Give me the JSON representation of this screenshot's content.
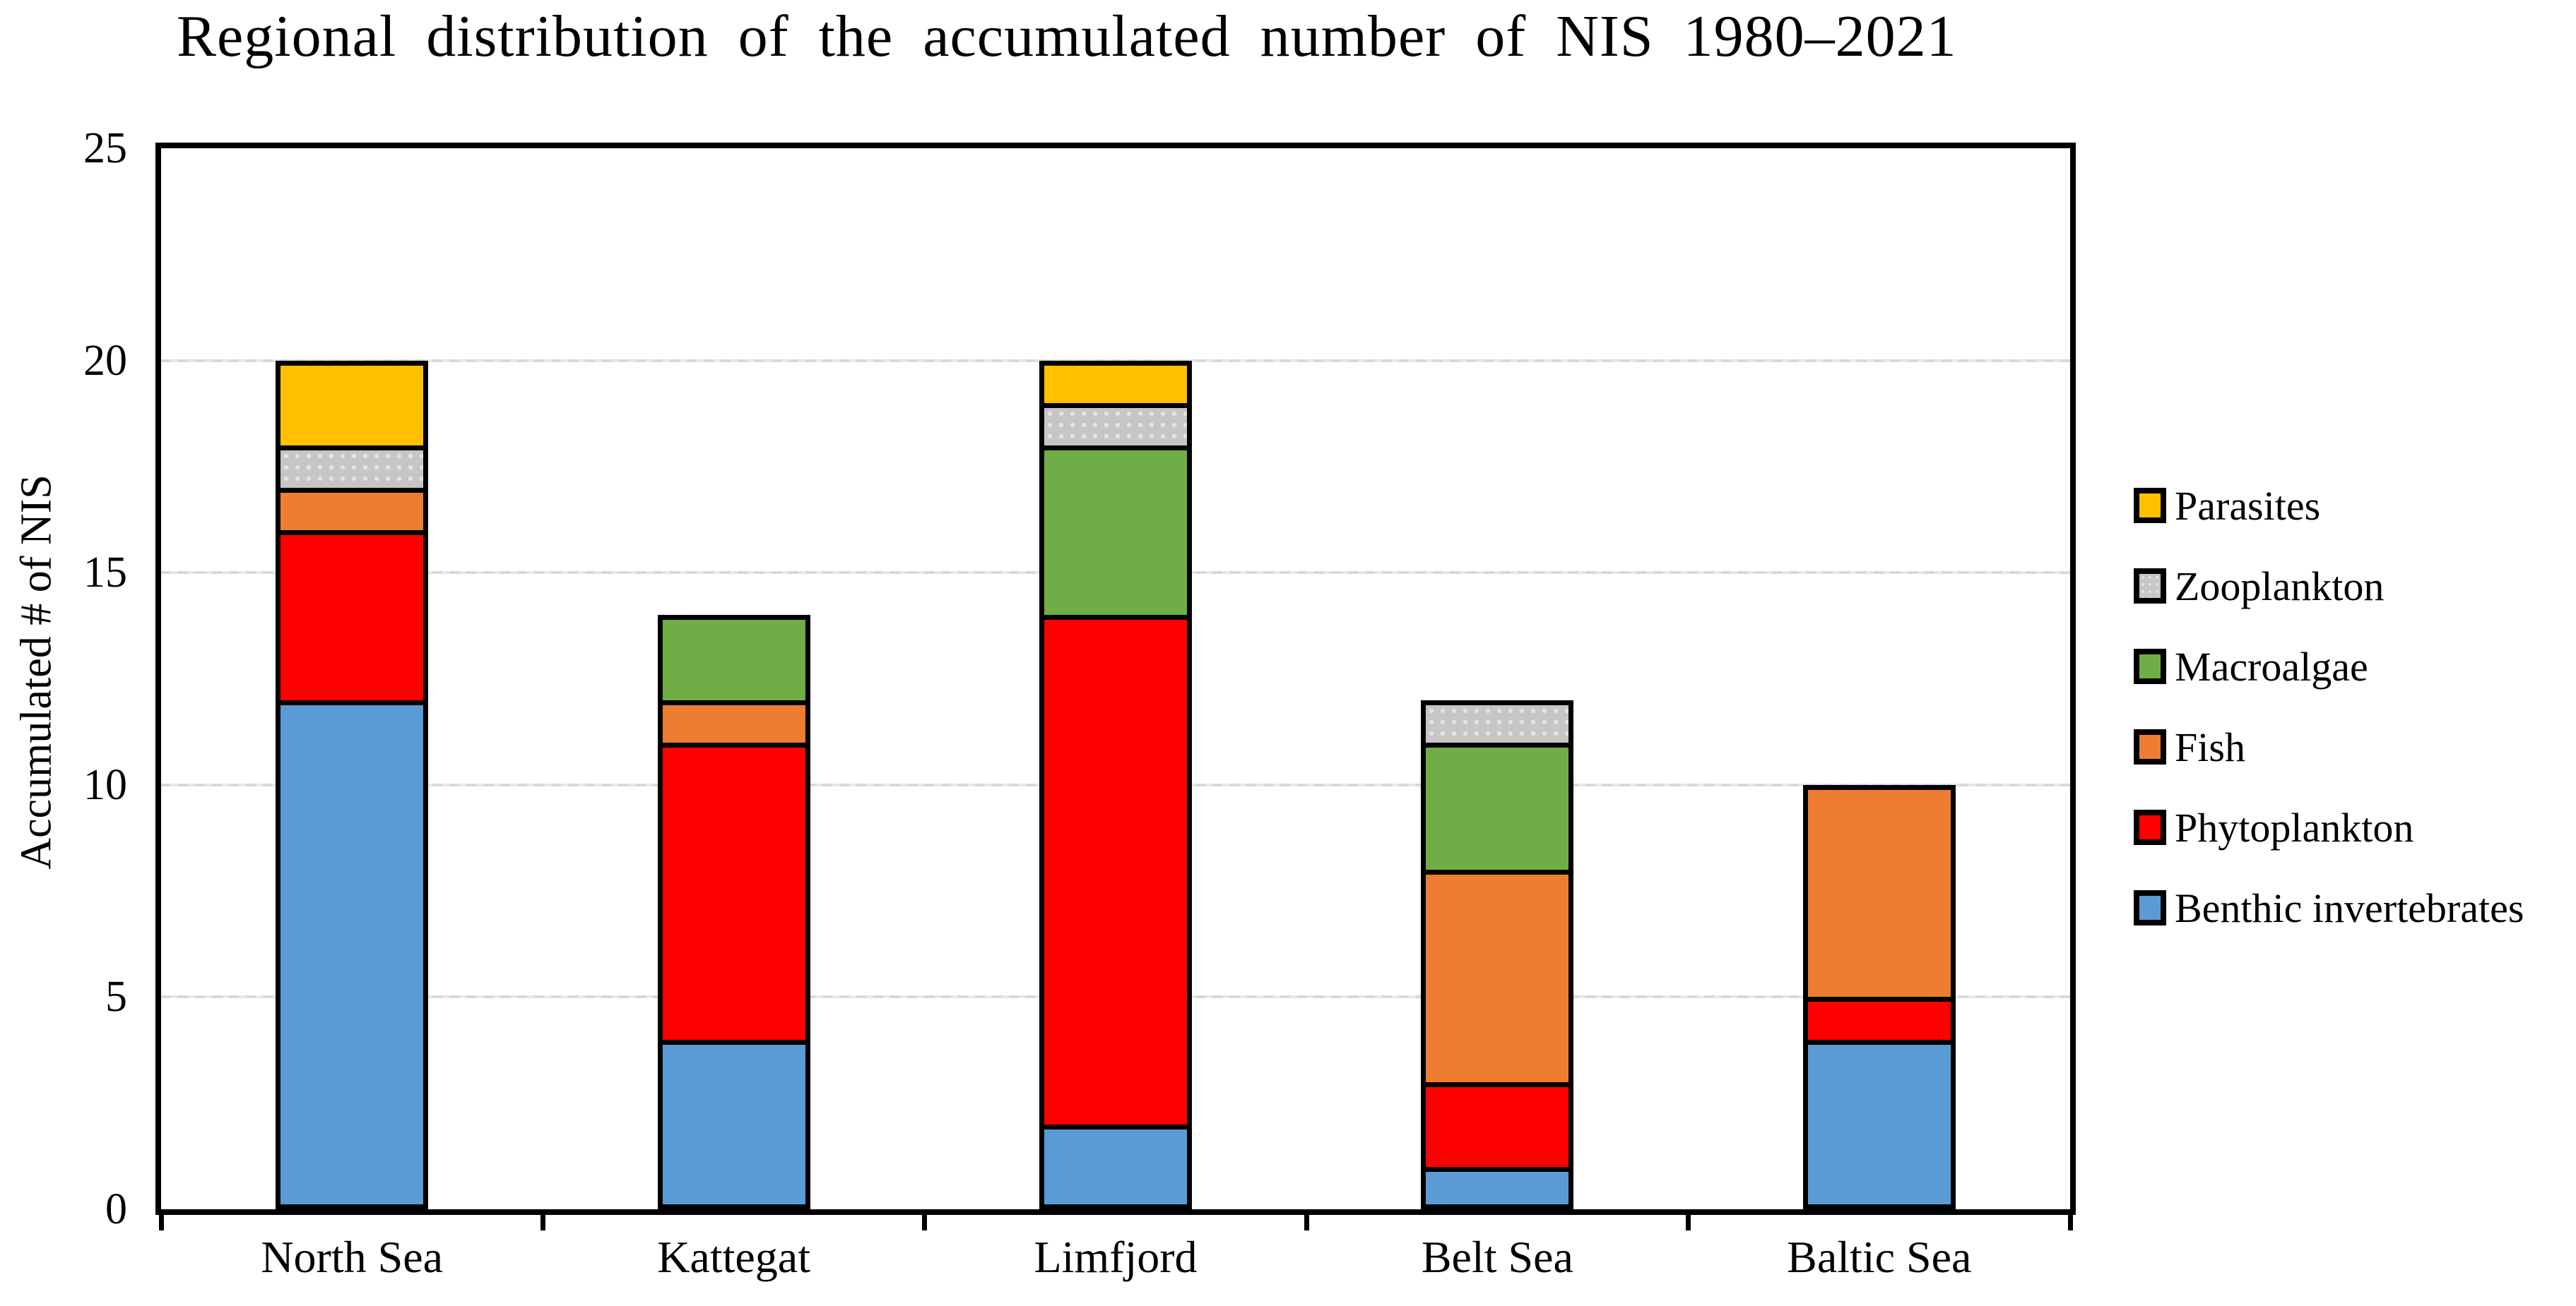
{
  "chart_data": {
    "type": "bar",
    "stacked": true,
    "title": "Regional distribution of the accumulated number of NIS 1980–2021",
    "xlabel": "",
    "ylabel": "Accumulated # of NIS",
    "ylim": [
      0,
      25
    ],
    "yticks": [
      0,
      5,
      10,
      15,
      20,
      25
    ],
    "grid": "horizontal-light-dashed",
    "legend_position": "right-middle",
    "legend_order_top_to_bottom": [
      "Parasites",
      "Zooplankton",
      "Macroalgae",
      "Fish",
      "Phytoplankton",
      "Benthic invertebrates"
    ],
    "categories": [
      "North Sea",
      "Kattegat",
      "Limfjord",
      "Belt Sea",
      "Baltic Sea"
    ],
    "series": [
      {
        "name": "Benthic invertebrates",
        "color": "#5B9BD5",
        "pattern": "solid",
        "values": [
          12,
          4,
          2,
          1,
          4
        ]
      },
      {
        "name": "Phytoplankton",
        "color": "#FF0000",
        "pattern": "solid",
        "values": [
          4,
          7,
          12,
          2,
          1
        ]
      },
      {
        "name": "Fish",
        "color": "#ED7D31",
        "pattern": "solid",
        "values": [
          1,
          1,
          0,
          5,
          5
        ]
      },
      {
        "name": "Macroalgae",
        "color": "#70AD47",
        "pattern": "solid",
        "values": [
          0,
          2,
          4,
          3,
          0
        ]
      },
      {
        "name": "Zooplankton",
        "color": "#C6C6C6",
        "pattern": "dots",
        "values": [
          1,
          0,
          1,
          1,
          0
        ]
      },
      {
        "name": "Parasites",
        "color": "#FFC000",
        "pattern": "solid",
        "values": [
          2,
          0,
          1,
          0,
          0
        ]
      }
    ],
    "stack_totals": [
      20,
      14,
      20,
      12,
      10
    ],
    "colors": {
      "axis": "#000000",
      "gridline": "#D9D9D9",
      "background": "#FFFFFF"
    }
  }
}
